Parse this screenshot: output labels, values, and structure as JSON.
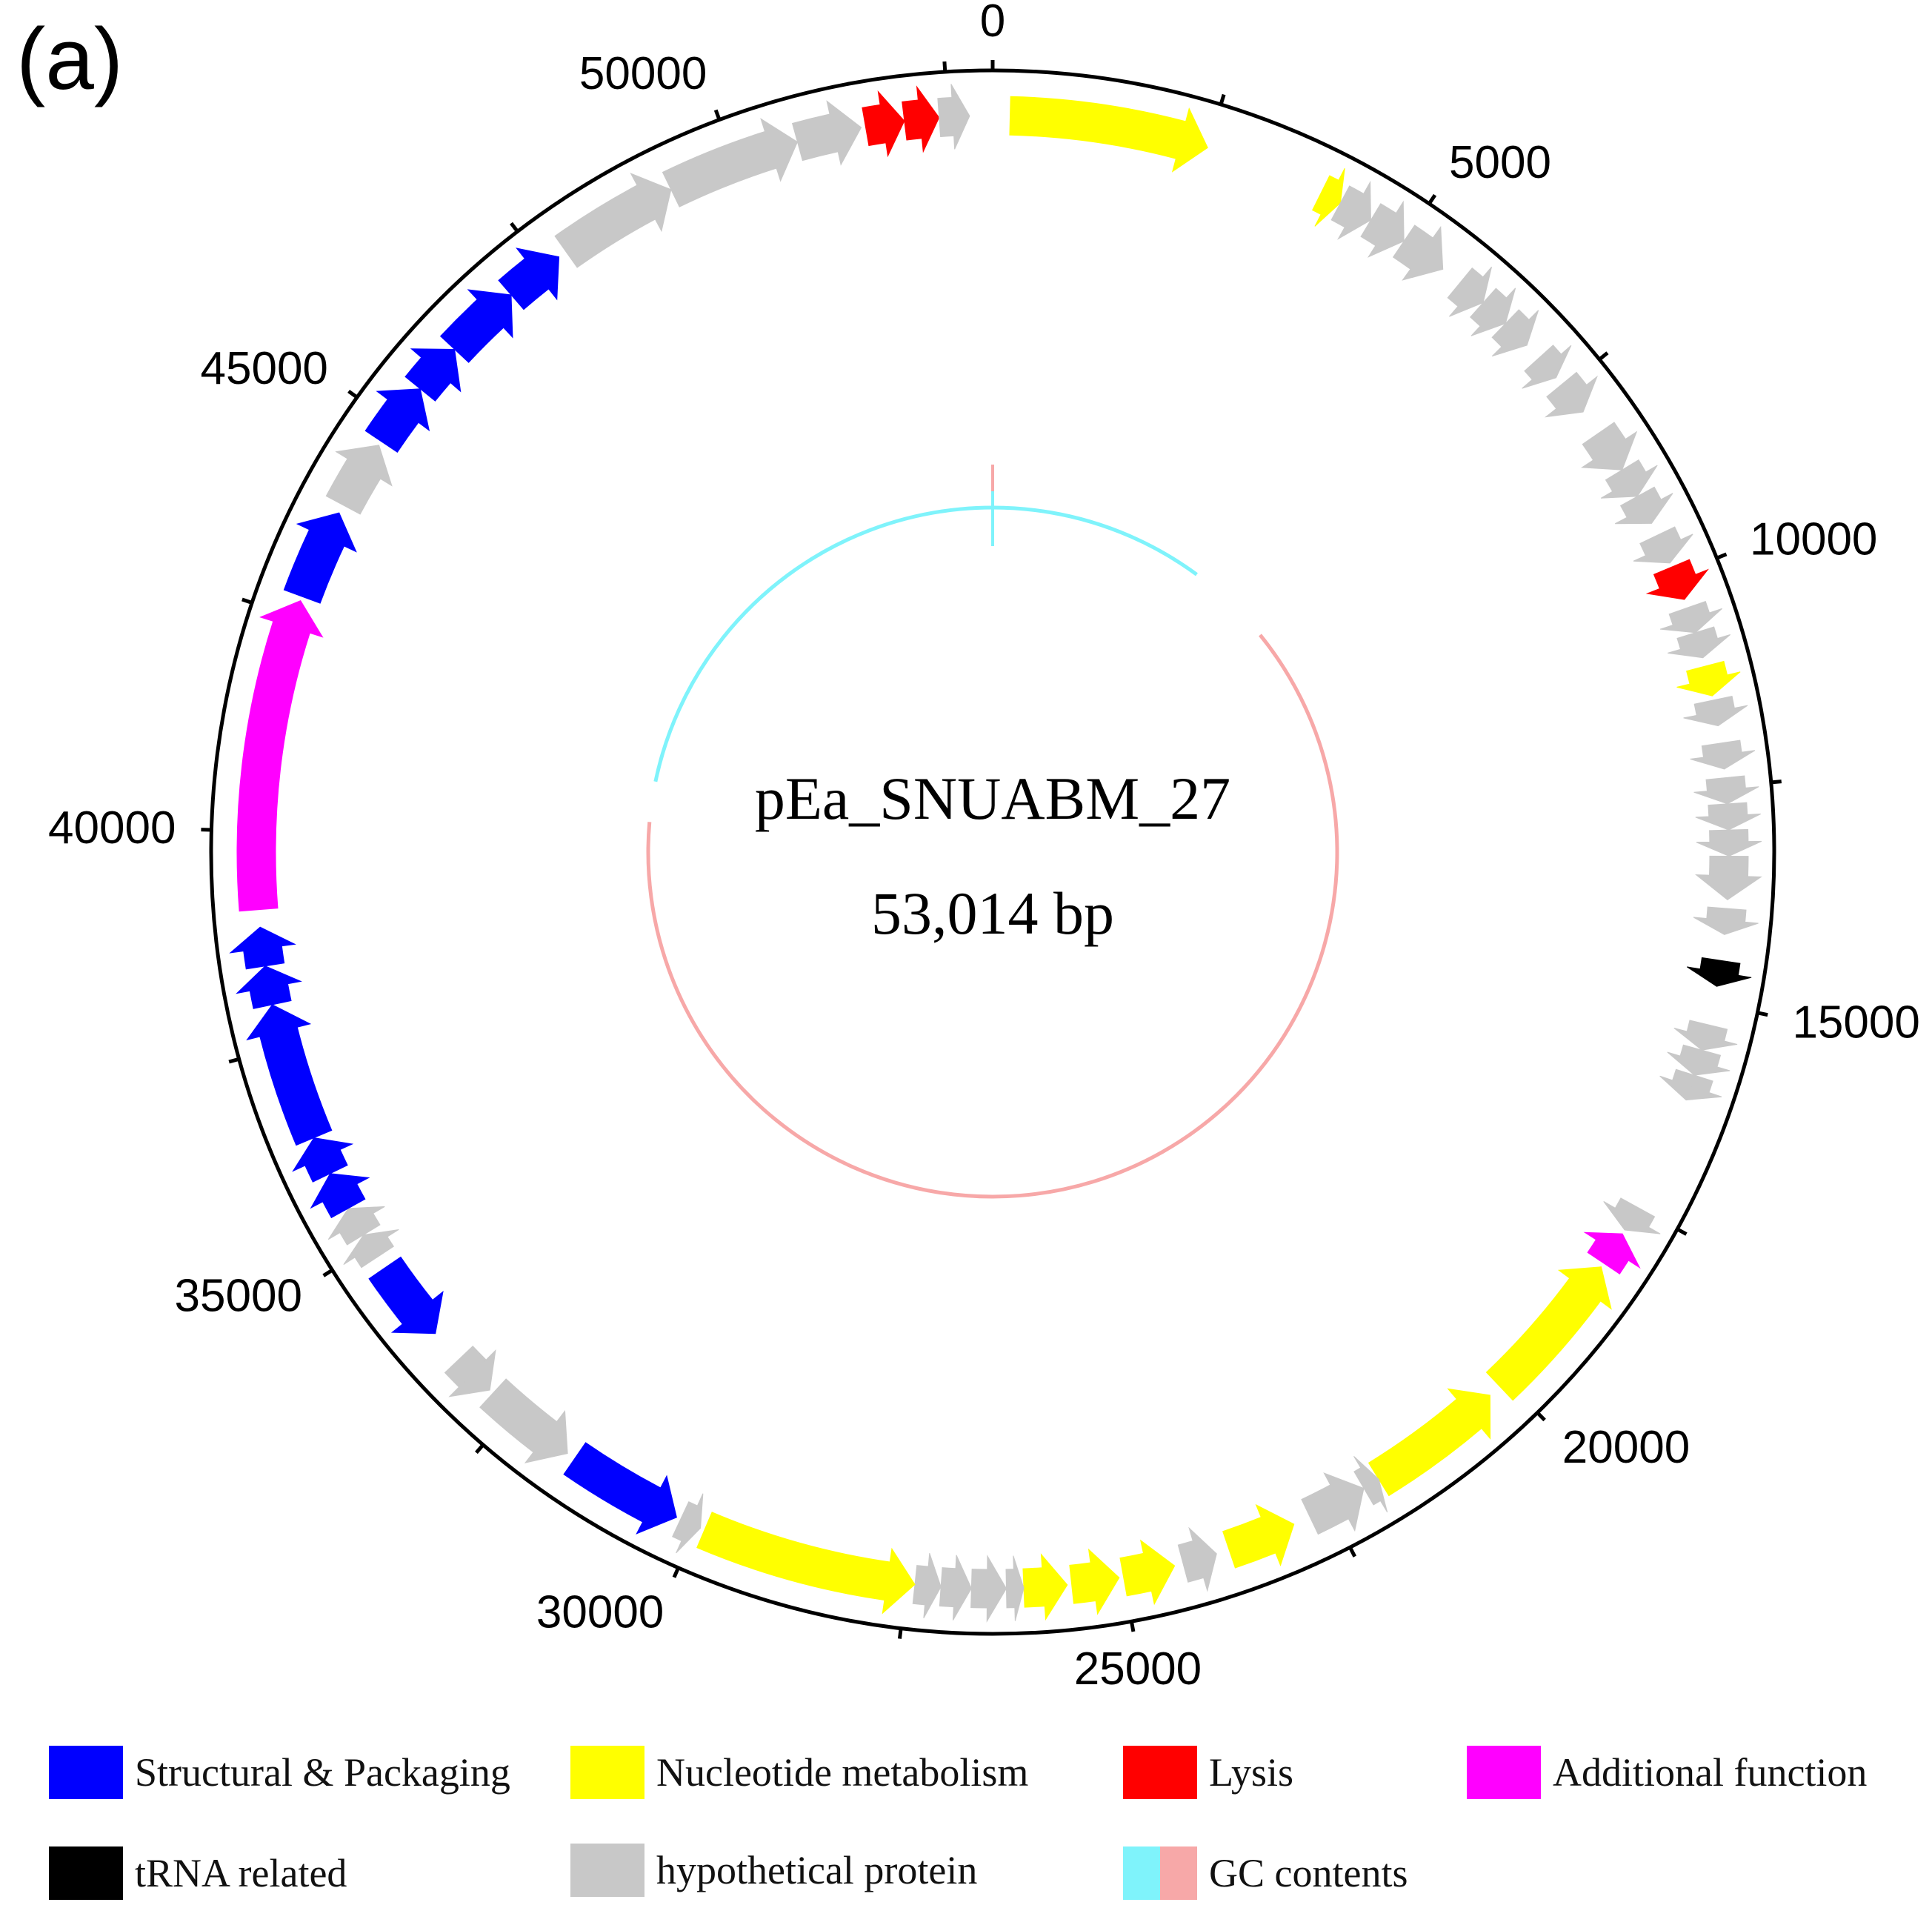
{
  "figure": {
    "panel_label": "(a)",
    "genome_name": "pEa_SNUABM_27",
    "genome_length_label": "53,014 bp",
    "genome_length": 53014
  },
  "axis": {
    "tick_labels": [
      "0",
      "5000",
      "10000",
      "15000",
      "20000",
      "25000",
      "30000",
      "35000",
      "40000",
      "45000",
      "50000"
    ],
    "tick_values": [
      0,
      5000,
      10000,
      15000,
      20000,
      25000,
      30000,
      35000,
      40000,
      45000,
      50000
    ],
    "minor_tick_step": 2500
  },
  "colors": {
    "structural": "#0000ff",
    "nucleotide": "#ffff00",
    "lysis": "#ff0000",
    "additional": "#ff00ff",
    "trna": "#000000",
    "hypothetical": "#c8c8c8",
    "gc_high": "#7ff3fb",
    "gc_low": "#f7a8a8",
    "circle": "#000000"
  },
  "genes": [
    {
      "start": 200,
      "end": 2500,
      "strand": "+",
      "category": "nucleotide"
    },
    {
      "start": 3900,
      "end": 4150,
      "strand": "+",
      "category": "nucleotide"
    },
    {
      "start": 4150,
      "end": 4550,
      "strand": "+",
      "category": "hypothetical"
    },
    {
      "start": 4550,
      "end": 5000,
      "strand": "+",
      "category": "hypothetical"
    },
    {
      "start": 5000,
      "end": 5550,
      "strand": "+",
      "category": "hypothetical"
    },
    {
      "start": 5800,
      "end": 6150,
      "strand": "+",
      "category": "hypothetical"
    },
    {
      "start": 6150,
      "end": 6500,
      "strand": "+",
      "category": "hypothetical"
    },
    {
      "start": 6500,
      "end": 6850,
      "strand": "+",
      "category": "hypothetical"
    },
    {
      "start": 7050,
      "end": 7350,
      "strand": "+",
      "category": "hypothetical"
    },
    {
      "start": 7450,
      "end": 7850,
      "strand": "+",
      "category": "hypothetical"
    },
    {
      "start": 8150,
      "end": 8650,
      "strand": "+",
      "category": "hypothetical"
    },
    {
      "start": 8650,
      "end": 9000,
      "strand": "+",
      "category": "hypothetical"
    },
    {
      "start": 9000,
      "end": 9350,
      "strand": "+",
      "category": "hypothetical"
    },
    {
      "start": 9500,
      "end": 9850,
      "strand": "+",
      "category": "hypothetical"
    },
    {
      "start": 9900,
      "end": 10300,
      "strand": "+",
      "category": "lysis"
    },
    {
      "start": 10400,
      "end": 10700,
      "strand": "+",
      "category": "hypothetical"
    },
    {
      "start": 10700,
      "end": 11000,
      "strand": "+",
      "category": "hypothetical"
    },
    {
      "start": 11100,
      "end": 11450,
      "strand": "+",
      "category": "nucleotide"
    },
    {
      "start": 11500,
      "end": 11800,
      "strand": "+",
      "category": "hypothetical"
    },
    {
      "start": 12000,
      "end": 12300,
      "strand": "+",
      "category": "hypothetical"
    },
    {
      "start": 12400,
      "end": 12700,
      "strand": "+",
      "category": "hypothetical"
    },
    {
      "start": 12700,
      "end": 13000,
      "strand": "+",
      "category": "hypothetical"
    },
    {
      "start": 13000,
      "end": 13300,
      "strand": "+",
      "category": "hypothetical"
    },
    {
      "start": 13300,
      "end": 13800,
      "strand": "+",
      "category": "hypothetical"
    },
    {
      "start": 13900,
      "end": 14200,
      "strand": "+",
      "category": "hypothetical"
    },
    {
      "start": 14500,
      "end": 14800,
      "strand": "+",
      "category": "trna"
    },
    {
      "start": 15250,
      "end": 15550,
      "strand": "+",
      "category": "hypothetical"
    },
    {
      "start": 15550,
      "end": 15850,
      "strand": "+",
      "category": "hypothetical"
    },
    {
      "start": 15850,
      "end": 16150,
      "strand": "+",
      "category": "hypothetical"
    },
    {
      "start": 17500,
      "end": 17800,
      "strand": "+",
      "category": "hypothetical"
    },
    {
      "start": 17850,
      "end": 18250,
      "strand": "-",
      "category": "additional"
    },
    {
      "start": 18300,
      "end": 20100,
      "strand": "-",
      "category": "nucleotide"
    },
    {
      "start": 20250,
      "end": 21850,
      "strand": "-",
      "category": "nucleotide"
    },
    {
      "start": 21850,
      "end": 22050,
      "strand": "-",
      "category": "hypothetical"
    },
    {
      "start": 22050,
      "end": 22750,
      "strand": "-",
      "category": "hypothetical"
    },
    {
      "start": 22950,
      "end": 23750,
      "strand": "-",
      "category": "nucleotide"
    },
    {
      "start": 23900,
      "end": 24300,
      "strand": "-",
      "category": "hypothetical"
    },
    {
      "start": 24400,
      "end": 25000,
      "strand": "-",
      "category": "nucleotide"
    },
    {
      "start": 25050,
      "end": 25600,
      "strand": "-",
      "category": "nucleotide"
    },
    {
      "start": 25650,
      "end": 26150,
      "strand": "-",
      "category": "nucleotide"
    },
    {
      "start": 26150,
      "end": 26350,
      "strand": "-",
      "category": "hypothetical"
    },
    {
      "start": 26350,
      "end": 26750,
      "strand": "-",
      "category": "hypothetical"
    },
    {
      "start": 26750,
      "end": 27100,
      "strand": "-",
      "category": "hypothetical"
    },
    {
      "start": 27100,
      "end": 27400,
      "strand": "-",
      "category": "hypothetical"
    },
    {
      "start": 27400,
      "end": 29900,
      "strand": "-",
      "category": "nucleotide"
    },
    {
      "start": 29950,
      "end": 30200,
      "strand": "-",
      "category": "hypothetical"
    },
    {
      "start": 30250,
      "end": 31600,
      "strand": "-",
      "category": "structural"
    },
    {
      "start": 31700,
      "end": 32800,
      "strand": "-",
      "category": "hypothetical"
    },
    {
      "start": 32850,
      "end": 33350,
      "strand": "-",
      "category": "hypothetical"
    },
    {
      "start": 33750,
      "end": 34700,
      "strand": "-",
      "category": "structural"
    },
    {
      "start": 34850,
      "end": 35150,
      "strand": "+",
      "category": "hypothetical"
    },
    {
      "start": 35150,
      "end": 35500,
      "strand": "+",
      "category": "hypothetical"
    },
    {
      "start": 35500,
      "end": 35950,
      "strand": "+",
      "category": "structural"
    },
    {
      "start": 35950,
      "end": 36400,
      "strand": "+",
      "category": "structural"
    },
    {
      "start": 36400,
      "end": 38000,
      "strand": "+",
      "category": "structural"
    },
    {
      "start": 38000,
      "end": 38450,
      "strand": "+",
      "category": "structural"
    },
    {
      "start": 38450,
      "end": 38900,
      "strand": "+",
      "category": "structural"
    },
    {
      "start": 39100,
      "end": 42700,
      "strand": "+",
      "category": "additional"
    },
    {
      "start": 42750,
      "end": 43800,
      "strand": "+",
      "category": "structural"
    },
    {
      "start": 43900,
      "end": 44700,
      "strand": "+",
      "category": "hypothetical"
    },
    {
      "start": 44750,
      "end": 45500,
      "strand": "+",
      "category": "structural"
    },
    {
      "start": 45500,
      "end": 46100,
      "strand": "+",
      "category": "structural"
    },
    {
      "start": 46100,
      "end": 47000,
      "strand": "+",
      "category": "structural"
    },
    {
      "start": 47000,
      "end": 47700,
      "strand": "+",
      "category": "structural"
    },
    {
      "start": 47800,
      "end": 49200,
      "strand": "+",
      "category": "hypothetical"
    },
    {
      "start": 49200,
      "end": 50750,
      "strand": "+",
      "category": "hypothetical"
    },
    {
      "start": 50750,
      "end": 51500,
      "strand": "+",
      "category": "hypothetical"
    },
    {
      "start": 51550,
      "end": 52000,
      "strand": "+",
      "category": "lysis"
    },
    {
      "start": 52000,
      "end": 52400,
      "strand": "+",
      "category": "lysis"
    },
    {
      "start": 52400,
      "end": 52750,
      "strand": "+",
      "category": "hypothetical"
    }
  ],
  "gc_content": {
    "high_arc": {
      "start": 41500,
      "end": 5350,
      "category": "gc_high"
    },
    "low_arc": {
      "start": 7500,
      "end": 40500,
      "category": "gc_low"
    }
  },
  "legend": [
    {
      "label": "Structural & Packaging",
      "category": "structural"
    },
    {
      "label": "Nucleotide metabolism",
      "category": "nucleotide"
    },
    {
      "label": "Lysis",
      "category": "lysis"
    },
    {
      "label": "Additional function",
      "category": "additional"
    },
    {
      "label": "tRNA related",
      "category": "trna"
    },
    {
      "label": "hypothetical protein",
      "category": "hypothetical"
    },
    {
      "label": "GC contents",
      "category": "gc"
    }
  ]
}
